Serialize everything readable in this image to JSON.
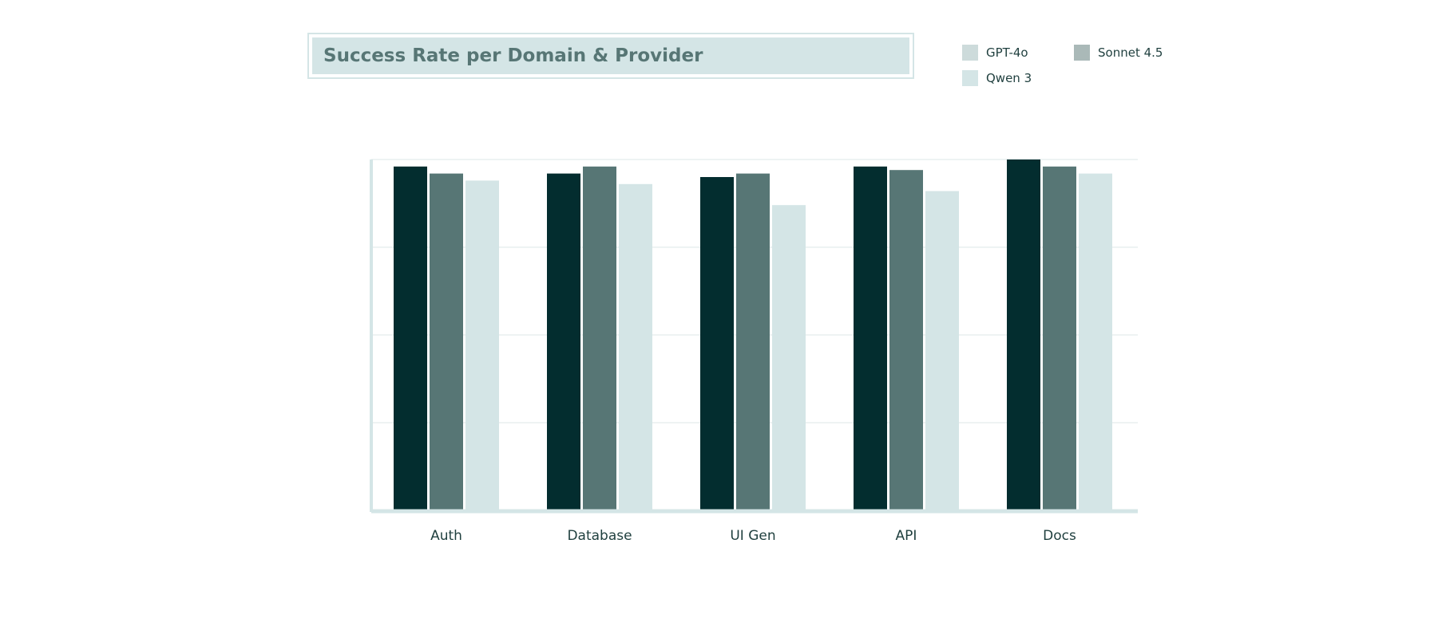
{
  "chart_data": {
    "type": "bar",
    "title": "Success Rate per Domain & Provider",
    "categories": [
      "Auth",
      "Database",
      "UI Gen",
      "API",
      "Docs"
    ],
    "ylim": [
      0,
      100
    ],
    "grid": true,
    "legend_position": "top-right",
    "series": [
      {
        "name": "GPT-4o",
        "values": [
          98,
          96,
          95,
          98,
          100
        ],
        "color": "#032d2f",
        "legend_color": "#cddbdb"
      },
      {
        "name": "Sonnet 4.5",
        "values": [
          96,
          98,
          96,
          97,
          98
        ],
        "color": "#577675",
        "legend_color": "#aab9b8"
      },
      {
        "name": "Qwen 3",
        "values": [
          94,
          93,
          87,
          91,
          96
        ],
        "color": "#d4e5e6",
        "legend_color": "#d4e5e6"
      }
    ]
  }
}
